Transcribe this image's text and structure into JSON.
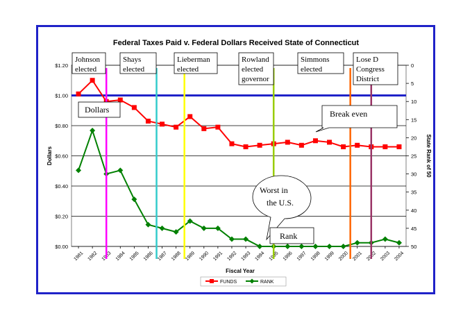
{
  "chart_data": {
    "type": "line",
    "title": "Federal Taxes Paid v. Federal Dollars Received  State of Connecticut",
    "xlabel": "Fiscal Year",
    "ylabel": "Dollars",
    "y2label": "State Rank of 50",
    "x": [
      1981,
      1982,
      1983,
      1984,
      1985,
      1986,
      1987,
      1988,
      1989,
      1990,
      1991,
      1992,
      1993,
      1994,
      1995,
      1996,
      1997,
      1998,
      1999,
      2000,
      2001,
      2002,
      2003,
      2004
    ],
    "ylim": [
      0,
      1.2
    ],
    "y_ticks": [
      "$0.00",
      "$0.20",
      "$0.40",
      "$0.60",
      "$0.80",
      "$1.00",
      "$1.20"
    ],
    "y2lim": [
      0,
      50
    ],
    "y2_ticks": [
      "0",
      "5",
      "10",
      "15",
      "20",
      "25",
      "30",
      "35",
      "40",
      "45",
      "50"
    ],
    "grid": true,
    "legend_position": "bottom",
    "break_even_value": 1.0,
    "series": [
      {
        "name": "FUNDS",
        "axis": "left",
        "color": "#ff0000",
        "marker": "square",
        "values": [
          1.01,
          1.1,
          0.96,
          0.97,
          0.92,
          0.83,
          0.81,
          0.79,
          0.86,
          0.78,
          0.79,
          0.68,
          0.66,
          0.67,
          0.68,
          0.69,
          0.67,
          0.7,
          0.69,
          0.66,
          0.67,
          0.66,
          0.66,
          0.66
        ]
      },
      {
        "name": "RANK",
        "axis": "right",
        "color": "#008000",
        "marker": "diamond",
        "values": [
          29,
          18,
          30,
          29,
          37,
          44,
          45,
          46,
          43,
          45,
          45,
          48,
          48,
          50,
          50,
          50,
          50,
          50,
          50,
          50,
          49,
          49,
          48,
          49
        ]
      }
    ],
    "annotations": [
      {
        "text": "Johnson elected",
        "x": 1983,
        "color": "#ff00ff"
      },
      {
        "text": "Shays elected",
        "x": 1986.6,
        "color": "#33cccc"
      },
      {
        "text": "Lieberman elected",
        "x": 1988.6,
        "color": "#ffff00"
      },
      {
        "text": "Rowland elected governor",
        "x": 1995,
        "color": "#99cc00"
      },
      {
        "text": "Simmons elected",
        "x": 2000.5,
        "color": "#ff6600"
      },
      {
        "text": "Lose D Congress District",
        "x": 2002,
        "color": "#993366"
      }
    ],
    "callouts": {
      "dollars": "Dollars",
      "break_even": "Break even",
      "worst": "Worst in the U.S.",
      "rank": "Rank"
    }
  }
}
